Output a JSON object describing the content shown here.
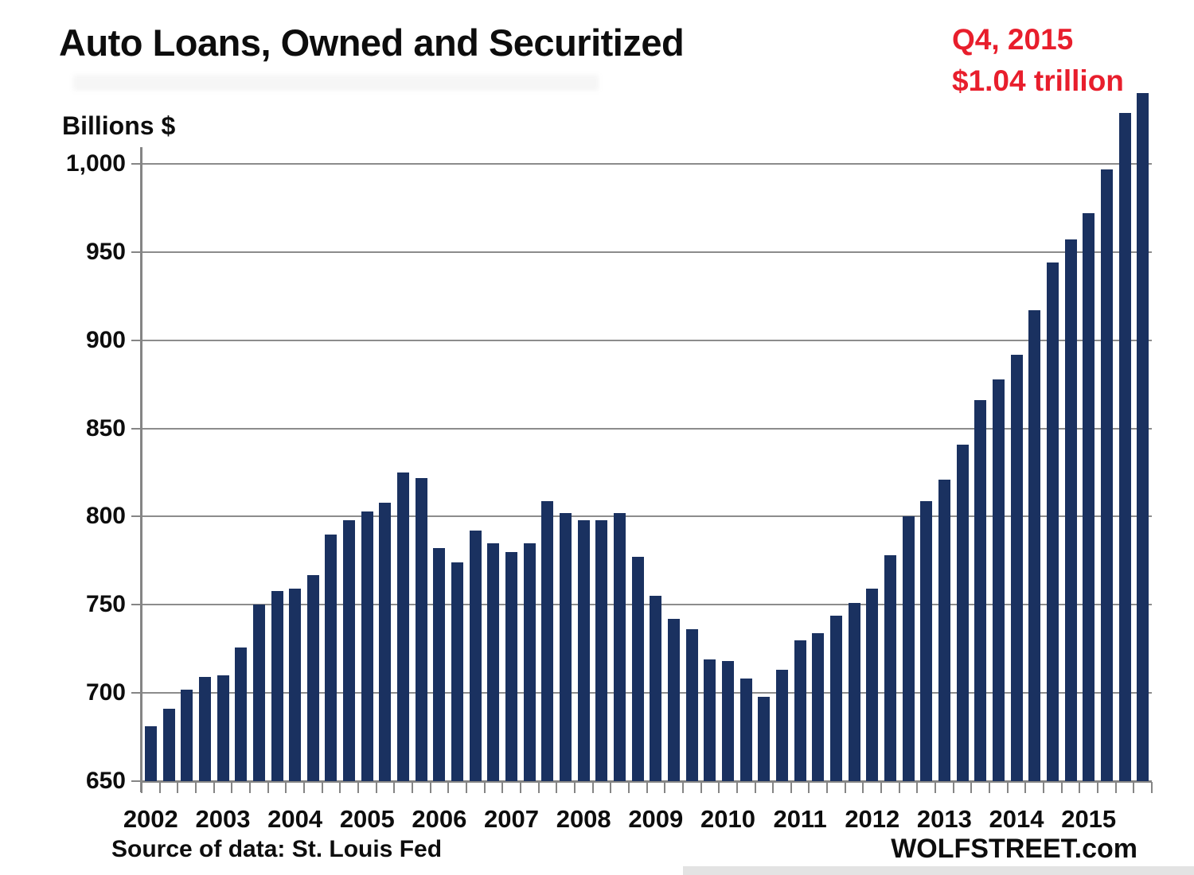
{
  "title": "Auto Loans, Owned and Securitized",
  "y_axis_title": "Billions $",
  "annotation": {
    "line1": "Q4, 2015",
    "line2": "$1.04 trillion"
  },
  "source_note": "Source of data: St. Louis Fed",
  "branding": "WOLFSTREET.com",
  "colors": {
    "bar": "#1a3160",
    "annotation": "#e81e2c",
    "grid": "#8c8c8c",
    "axis": "#858585",
    "text": "#0d0d0d"
  },
  "chart_data": {
    "type": "bar",
    "title": "Auto Loans, Owned and Securitized",
    "ylabel": "Billions $",
    "unit": "billions of US dollars",
    "ylim": [
      650,
      1045
    ],
    "grid": "horizontal",
    "legend_position": "none",
    "ytick_values": [
      650,
      700,
      750,
      800,
      850,
      900,
      950,
      1000
    ],
    "ytick_labels": [
      "650",
      "700",
      "750",
      "800",
      "850",
      "900",
      "950",
      "1,000"
    ],
    "year_labels": [
      "2002",
      "2003",
      "2004",
      "2005",
      "2006",
      "2007",
      "2008",
      "2009",
      "2010",
      "2011",
      "2012",
      "2013",
      "2014",
      "2015"
    ],
    "quarters_per_year": 4,
    "categories": [
      "2002 Q1",
      "2002 Q2",
      "2002 Q3",
      "2002 Q4",
      "2003 Q1",
      "2003 Q2",
      "2003 Q3",
      "2003 Q4",
      "2004 Q1",
      "2004 Q2",
      "2004 Q3",
      "2004 Q4",
      "2005 Q1",
      "2005 Q2",
      "2005 Q3",
      "2005 Q4",
      "2006 Q1",
      "2006 Q2",
      "2006 Q3",
      "2006 Q4",
      "2007 Q1",
      "2007 Q2",
      "2007 Q3",
      "2007 Q4",
      "2008 Q1",
      "2008 Q2",
      "2008 Q3",
      "2008 Q4",
      "2009 Q1",
      "2009 Q2",
      "2009 Q3",
      "2009 Q4",
      "2010 Q1",
      "2010 Q2",
      "2010 Q3",
      "2010 Q4",
      "2011 Q1",
      "2011 Q2",
      "2011 Q3",
      "2011 Q4",
      "2012 Q1",
      "2012 Q2",
      "2012 Q3",
      "2012 Q4",
      "2013 Q1",
      "2013 Q2",
      "2013 Q3",
      "2013 Q4",
      "2014 Q1",
      "2014 Q2",
      "2014 Q3",
      "2014 Q4",
      "2015 Q1",
      "2015 Q2",
      "2015 Q3",
      "2015 Q4"
    ],
    "values": [
      681,
      691,
      702,
      709,
      710,
      726,
      750,
      758,
      759,
      767,
      790,
      798,
      803,
      808,
      825,
      822,
      782,
      774,
      792,
      785,
      780,
      785,
      809,
      802,
      798,
      798,
      802,
      777,
      755,
      742,
      736,
      719,
      718,
      708,
      698,
      713,
      730,
      734,
      744,
      751,
      759,
      778,
      800,
      809,
      821,
      841,
      866,
      878,
      892,
      917,
      944,
      957,
      972,
      997,
      1029,
      1040
    ]
  }
}
